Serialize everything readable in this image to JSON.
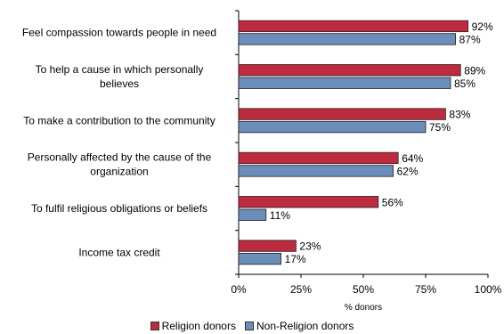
{
  "chart_data": {
    "type": "bar",
    "orientation": "horizontal",
    "categories": [
      [
        "Feel compassion towards people in need"
      ],
      [
        "To help a cause in which personally",
        "believes"
      ],
      [
        "To make a contribution to the community"
      ],
      [
        "Personally affected by the cause of the",
        "organization"
      ],
      [
        "To fulfil religious obligations or beliefs"
      ],
      [
        "Income tax credit"
      ]
    ],
    "series": [
      {
        "name": "Religion donors",
        "color": "#be2a3e",
        "values": [
          92,
          89,
          83,
          64,
          56,
          23
        ]
      },
      {
        "name": "Non-Religion donors",
        "color": "#6b8db9",
        "values": [
          87,
          85,
          75,
          62,
          11,
          17
        ]
      }
    ],
    "data_labels": [
      [
        "92%",
        "89%",
        "83%",
        "64%",
        "56%",
        "23%"
      ],
      [
        "87%",
        "85%",
        "75%",
        "62%",
        "11%",
        "17%"
      ]
    ],
    "xlim": [
      0,
      100
    ],
    "ticks": [
      0,
      25,
      50,
      75,
      100
    ],
    "tick_labels": [
      "0%",
      "25%",
      "50%",
      "75%",
      "100%"
    ],
    "xlabel": "% donors",
    "legend_position": "bottom",
    "grid": false
  }
}
